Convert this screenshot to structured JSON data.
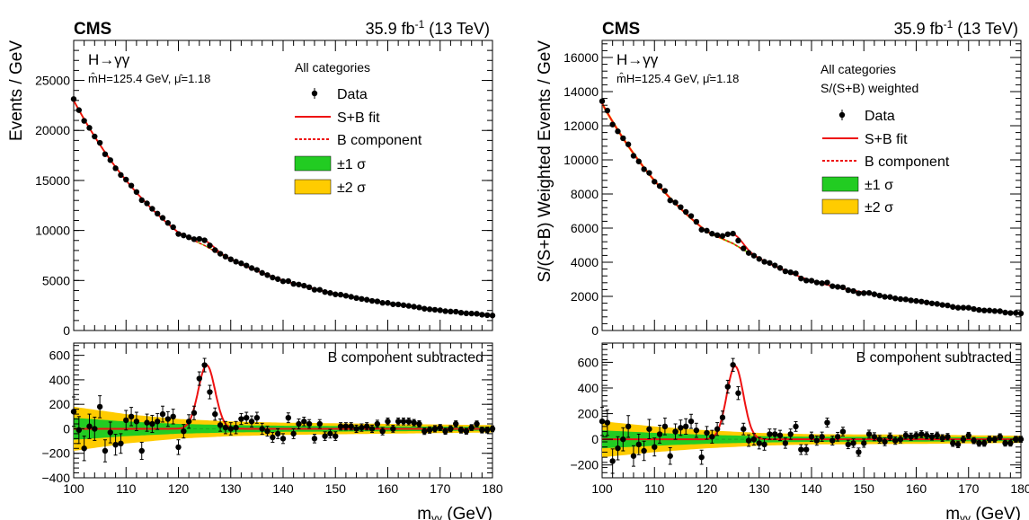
{
  "colors": {
    "data": "#000000",
    "fit": "#ee1111",
    "bcomp": "#ee1111",
    "band1": "#22cc22",
    "band2": "#ffcc00",
    "zero_line": "#22aa22"
  },
  "chart_data": [
    {
      "type": "scatter",
      "panel": "left-main",
      "experiment": "CMS",
      "lumi_prefix": "35.9 fb",
      "lumi_sup": "-1",
      "lumi_suffix": " (13 TeV)",
      "channel": "H→γγ",
      "fit_result": "m̂H=125.4 GeV, μ̂=1.18",
      "category": "All categories",
      "ylabel": "Events / GeV",
      "xlim": [
        100,
        180
      ],
      "ylim": [
        0,
        29000
      ],
      "yticks": [
        0,
        5000,
        10000,
        15000,
        20000,
        25000
      ],
      "legend": {
        "data": "Data",
        "fit": "S+B fit",
        "bcomp": "B component",
        "band1": "±1 σ",
        "band2": "±2 σ"
      },
      "background": {
        "x": [
          100,
          120,
          125,
          140,
          160,
          180
        ],
        "y": [
          23000,
          9800,
          8500,
          5000,
          2700,
          1500
        ]
      },
      "signal": {
        "mass": 125.4,
        "width": 1.6,
        "amplitude": 520
      },
      "bin_width": 1
    },
    {
      "type": "scatter",
      "panel": "left-ratio",
      "title": "B component subtracted",
      "xlabel": "mγγ (GeV)",
      "xlim": [
        100,
        180
      ],
      "ylim": [
        -400,
        700
      ],
      "xticks": [
        100,
        110,
        120,
        130,
        140,
        150,
        160,
        170,
        180
      ],
      "yticks": [
        -400,
        -200,
        0,
        200,
        400,
        600
      ],
      "signal": {
        "mass": 125.4,
        "width": 1.6,
        "amplitude": 520
      },
      "band1": {
        "x": [
          100,
          110,
          120,
          130,
          140,
          160,
          180
        ],
        "h": [
          90,
          60,
          40,
          30,
          25,
          20,
          15
        ]
      },
      "band2": {
        "x": [
          100,
          110,
          120,
          130,
          140,
          160,
          180
        ],
        "h": [
          180,
          120,
          80,
          60,
          50,
          40,
          30
        ]
      },
      "residuals": [
        140,
        -10,
        -160,
        20,
        0,
        180,
        -180,
        -30,
        -130,
        -120,
        70,
        100,
        60,
        -180,
        50,
        40,
        60,
        120,
        80,
        100,
        -150,
        -20,
        60,
        130,
        410,
        520,
        300,
        120,
        30,
        10,
        0,
        10,
        80,
        90,
        60,
        90,
        0,
        -20,
        -70,
        -40,
        -80,
        90,
        -40,
        40,
        60,
        40,
        -80,
        40,
        -60,
        -40,
        -60,
        20,
        20,
        20,
        0,
        10,
        20,
        0,
        40,
        -20,
        60,
        0,
        60,
        60,
        60,
        50,
        40,
        -20,
        -10,
        0,
        10,
        -20,
        0,
        40,
        -10,
        -20,
        10,
        40,
        -10,
        -10,
        0
      ],
      "errors": [
        120,
        110,
        100,
        100,
        95,
        90,
        90,
        85,
        85,
        80,
        80,
        75,
        75,
        70,
        70,
        70,
        65,
        65,
        60,
        60,
        60,
        55,
        55,
        55,
        55,
        55,
        55,
        50,
        50,
        50,
        50,
        50,
        45,
        45,
        45,
        45,
        45,
        40,
        40,
        40,
        40,
        40,
        40,
        40,
        35,
        35,
        35,
        35,
        35,
        35,
        35,
        30,
        30,
        30,
        30,
        30,
        30,
        30,
        30,
        30,
        28,
        28,
        28,
        28,
        28,
        26,
        26,
        26,
        26,
        26,
        25,
        25,
        25,
        25,
        25,
        24,
        24,
        24,
        24,
        24,
        24
      ]
    },
    {
      "type": "scatter",
      "panel": "right-main",
      "experiment": "CMS",
      "lumi_prefix": "35.9 fb",
      "lumi_sup": "-1",
      "lumi_suffix": " (13 TeV)",
      "channel": "H→γγ",
      "fit_result": "m̂H=125.4 GeV, μ̂=1.18",
      "category": "All categories",
      "category2": "S/(S+B) weighted",
      "ylabel": "S/(S+B) Weighted Events / GeV",
      "xlim": [
        100,
        180
      ],
      "ylim": [
        0,
        17000
      ],
      "yticks": [
        0,
        2000,
        4000,
        6000,
        8000,
        10000,
        12000,
        14000,
        16000
      ],
      "legend": {
        "data": "Data",
        "fit": "S+B fit",
        "bcomp": "B component",
        "band1": "±1 σ",
        "band2": "±2 σ"
      },
      "background": {
        "x": [
          100,
          120,
          125,
          140,
          160,
          180
        ],
        "y": [
          13300,
          5800,
          5100,
          2900,
          1700,
          1000
        ]
      },
      "signal": {
        "mass": 125.4,
        "width": 1.6,
        "amplitude": 570
      },
      "bin_width": 1
    },
    {
      "type": "scatter",
      "panel": "right-ratio",
      "title": "B component subtracted",
      "xlabel": "mγγ (GeV)",
      "xlim": [
        100,
        180
      ],
      "ylim": [
        -300,
        750
      ],
      "xticks": [
        100,
        110,
        120,
        130,
        140,
        150,
        160,
        170,
        180
      ],
      "yticks": [
        -200,
        0,
        200,
        400,
        600
      ],
      "signal": {
        "mass": 125.4,
        "width": 1.6,
        "amplitude": 570
      },
      "band1": {
        "x": [
          100,
          110,
          120,
          130,
          140,
          160,
          180
        ],
        "h": [
          70,
          50,
          35,
          25,
          20,
          18,
          14
        ]
      },
      "band2": {
        "x": [
          100,
          110,
          120,
          130,
          140,
          160,
          180
        ],
        "h": [
          140,
          100,
          70,
          50,
          40,
          36,
          28
        ]
      },
      "residuals": [
        140,
        130,
        -170,
        -70,
        0,
        100,
        -130,
        -40,
        -90,
        80,
        -60,
        40,
        100,
        -130,
        60,
        90,
        100,
        140,
        70,
        -140,
        50,
        20,
        80,
        170,
        410,
        580,
        360,
        80,
        -10,
        0,
        -30,
        -40,
        40,
        40,
        30,
        -30,
        40,
        100,
        -80,
        -80,
        20,
        -10,
        20,
        130,
        -10,
        20,
        60,
        -40,
        -30,
        -100,
        -30,
        40,
        20,
        0,
        -20,
        20,
        -10,
        0,
        30,
        20,
        30,
        40,
        30,
        20,
        30,
        10,
        20,
        -30,
        -40,
        0,
        30,
        -10,
        -30,
        -30,
        0,
        0,
        20,
        -30,
        -30,
        0,
        0
      ],
      "errors": [
        110,
        100,
        95,
        90,
        90,
        85,
        80,
        80,
        75,
        75,
        70,
        70,
        65,
        65,
        60,
        60,
        60,
        55,
        55,
        55,
        50,
        50,
        50,
        50,
        50,
        50,
        50,
        45,
        45,
        45,
        45,
        45,
        40,
        40,
        40,
        40,
        40,
        38,
        38,
        38,
        36,
        36,
        36,
        35,
        35,
        34,
        34,
        33,
        33,
        32,
        32,
        31,
        31,
        30,
        30,
        29,
        29,
        28,
        28,
        28,
        27,
        27,
        27,
        26,
        26,
        26,
        25,
        25,
        25,
        25,
        24,
        24,
        24,
        24,
        24,
        23,
        23,
        23,
        23,
        23,
        23
      ]
    }
  ]
}
